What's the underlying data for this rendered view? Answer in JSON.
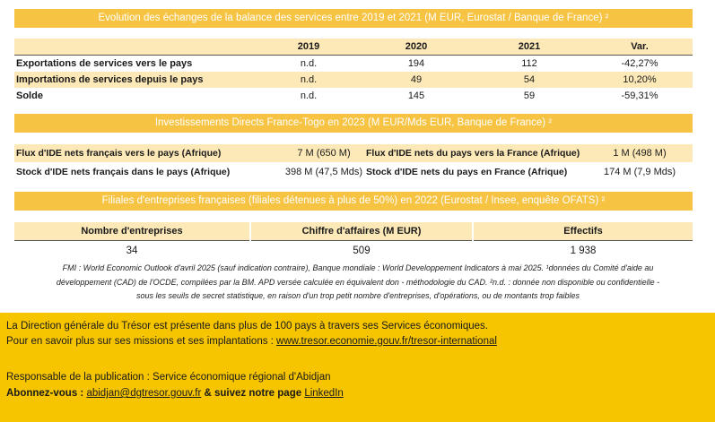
{
  "section1": {
    "title": "Evolution des échanges de la balance des services entre 2019 et 2021 (M EUR, Eurostat / Banque de France) ²",
    "headers": [
      "",
      "2019",
      "2020",
      "2021",
      "Var."
    ],
    "rows": [
      {
        "label": "Exportations de services vers le pays",
        "y2019": "n.d.",
        "y2020": "194",
        "y2021": "112",
        "var": "-42,27%"
      },
      {
        "label": "Importations de services depuis le pays",
        "y2019": "n.d.",
        "y2020": "49",
        "y2021": "54",
        "var": "10,20%"
      },
      {
        "label": "Solde",
        "y2019": "n.d.",
        "y2020": "145",
        "y2021": "59",
        "var": "-59,31%"
      }
    ]
  },
  "section2": {
    "title": "Investissements Directs France-Togo en 2023 (M EUR/Mds EUR, Banque de France) ²",
    "rows": [
      {
        "label1": "Flux d'IDE nets français vers le pays (Afrique)",
        "value1": "7 M (650 M)",
        "label2": "Flux d'IDE nets du pays vers la France (Afrique)",
        "value2": "1 M (498 M)"
      },
      {
        "label1": "Stock d'IDE nets français dans le pays (Afrique)",
        "value1": "398 M (47,5 Mds)",
        "label2": "Stock d'IDE nets du pays  en France (Afrique)",
        "value2": "174 M (7,9 Mds)"
      }
    ]
  },
  "section3": {
    "title": "Filiales d'entreprises françaises (filiales détenues à plus de 50%) en 2022 (Eurostat / Insee, enquête OFATS) ²",
    "headers": [
      "Nombre d'entreprises",
      "Chiffre d'affaires (M EUR)",
      "Effectifs"
    ],
    "values": [
      "34",
      "509",
      "1 938"
    ]
  },
  "notes": {
    "line1": "FMI : World Economic Outlook d'avril 2025 (sauf indication contraire), Banque mondiale : World Developpement Indicators à mai 2025. ¹données du Comité d'aide au",
    "line2": "développement (CAD) de l'OCDE, compilées par la BM. APD versée calculée en équivalent don - méthodologie du CAD. ²n.d. : donnée non disponible ou confidentielle -",
    "line3": "sous les seuils de secret statistique, en raison d'un trop petit nombre d'entreprises, d'opérations, ou de montants trop faibles"
  },
  "footer": {
    "line1": "La Direction générale du Trésor est présente dans plus de 100 pays à travers ses Services économiques.",
    "line2_prefix": "Pour en savoir plus sur ses missions et ses implantations : ",
    "line2_link": "www.tresor.economie.gouv.fr/tresor-international",
    "line3": "Responsable de la publication : Service économique régional d'Abidjan",
    "subscribe_prefix": "Abonnez-vous : ",
    "subscribe_email": "abidjan@dgtresor.gouv.fr",
    "subscribe_mid": " & suivez notre page ",
    "subscribe_link": "LinkedIn"
  },
  "colors": {
    "banner": "#f6c343",
    "highlight": "#fde9b8",
    "footer": "#f6c500"
  }
}
